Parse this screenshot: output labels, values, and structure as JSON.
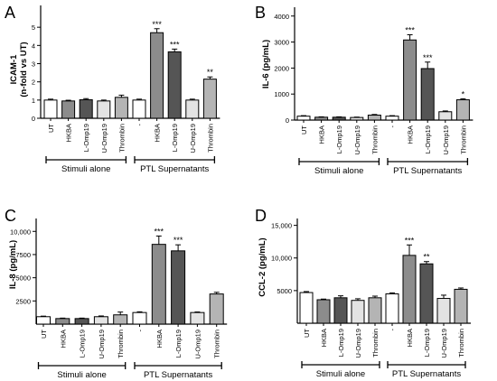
{
  "chart_data": [
    {
      "type": "bar",
      "panel_letter": "A",
      "ylabel_lines": [
        "ICAM-1",
        "(n-fold vs UT)"
      ],
      "ylim": [
        0,
        6
      ],
      "yticks": [
        0,
        1,
        2,
        3,
        4,
        5
      ],
      "ytick_labels": [
        "0",
        "1",
        "2",
        "3",
        "4",
        "5"
      ],
      "categories": [
        "UT",
        "HKBA",
        "L-Omp19",
        "U-Omp19",
        "Thrombin",
        "-",
        "HKBA",
        "L-Omp19",
        "U-Omp19",
        "Thrombin"
      ],
      "values": [
        1.0,
        0.95,
        1.02,
        0.95,
        1.15,
        1.0,
        4.7,
        3.65,
        1.0,
        2.15
      ],
      "errors": [
        0.05,
        0.04,
        0.06,
        0.05,
        0.12,
        0.05,
        0.22,
        0.15,
        0.05,
        0.12
      ],
      "significance": [
        "",
        "",
        "",
        "",
        "",
        "",
        "***",
        "***",
        "",
        "**"
      ],
      "fills": [
        "#ffffff",
        "#8c8c8c",
        "#555555",
        "#e3e3e3",
        "#b4b4b4",
        "#ffffff",
        "#8c8c8c",
        "#555555",
        "#e3e3e3",
        "#b4b4b4"
      ],
      "groups": [
        "Stimuli alone",
        "PTL Supernatants"
      ]
    },
    {
      "type": "bar",
      "panel_letter": "B",
      "ylabel_lines": [
        "IL-6 (pg/mL)"
      ],
      "ylim": [
        0,
        4200
      ],
      "yticks": [
        0,
        1000,
        2000,
        3000,
        4000
      ],
      "ytick_labels": [
        "0",
        "1000",
        "2000",
        "3000",
        "4000"
      ],
      "categories": [
        "UT",
        "HKBA",
        "L-Omp19",
        "U-Omp19",
        "Thrombin",
        "-",
        "HKBA",
        "L-Omp19",
        "U-Omp19",
        "Thrombin"
      ],
      "values": [
        150,
        110,
        110,
        100,
        190,
        150,
        3080,
        1980,
        320,
        780
      ],
      "errors": [
        20,
        15,
        15,
        15,
        25,
        20,
        200,
        250,
        30,
        40
      ],
      "significance": [
        "",
        "",
        "",
        "",
        "",
        "",
        "***",
        "***",
        "",
        "*"
      ],
      "fills": [
        "#ffffff",
        "#8c8c8c",
        "#555555",
        "#e3e3e3",
        "#b4b4b4",
        "#ffffff",
        "#8c8c8c",
        "#555555",
        "#e3e3e3",
        "#b4b4b4"
      ],
      "groups": [
        "Stimuli alone",
        "PTL Supernatants"
      ]
    },
    {
      "type": "bar",
      "panel_letter": "C",
      "ylabel_lines": [
        "IL-8 (pg/mL)"
      ],
      "ylim": [
        0,
        11000
      ],
      "yticks": [
        2500,
        5000,
        7500,
        10000
      ],
      "ytick_labels": [
        "2500",
        "5000",
        "7500",
        "10,000"
      ],
      "categories": [
        "UT",
        "HKBA",
        "L-Omp19",
        "U-Omp19",
        "Thrombin",
        "-",
        "HKBA",
        "L-Omp19",
        "U-Omp19",
        "Thrombin"
      ],
      "values": [
        800,
        600,
        600,
        800,
        1000,
        1250,
        8600,
        7900,
        1250,
        3250
      ],
      "errors": [
        60,
        50,
        50,
        80,
        300,
        80,
        900,
        650,
        60,
        180
      ],
      "significance": [
        "",
        "",
        "",
        "",
        "",
        "",
        "***",
        "***",
        "",
        ""
      ],
      "fills": [
        "#ffffff",
        "#8c8c8c",
        "#555555",
        "#e3e3e3",
        "#b4b4b4",
        "#ffffff",
        "#8c8c8c",
        "#555555",
        "#e3e3e3",
        "#b4b4b4"
      ],
      "groups": [
        "Stimuli alone",
        "PTL Supernatants"
      ]
    },
    {
      "type": "bar",
      "panel_letter": "D",
      "ylabel_lines": [
        "CCL-2 (pg/mL)"
      ],
      "ylim": [
        0,
        15500
      ],
      "yticks": [
        5000,
        10000,
        15000
      ],
      "ytick_labels": [
        "5000",
        "10,000",
        "15,000"
      ],
      "categories": [
        "UT",
        "HKBA",
        "L-Omp19",
        "U-Omp19",
        "Thrombin",
        "-",
        "HKBA",
        "L-Omp19",
        "U-Omp19",
        "Thrombin"
      ],
      "values": [
        4700,
        3600,
        3900,
        3500,
        3900,
        4500,
        10400,
        9100,
        3800,
        5200
      ],
      "errors": [
        150,
        100,
        300,
        250,
        250,
        150,
        1600,
        350,
        500,
        200
      ],
      "significance": [
        "",
        "",
        "",
        "",
        "",
        "",
        "***",
        "**",
        "",
        ""
      ],
      "fills": [
        "#ffffff",
        "#8c8c8c",
        "#555555",
        "#e3e3e3",
        "#b4b4b4",
        "#ffffff",
        "#8c8c8c",
        "#555555",
        "#e3e3e3",
        "#b4b4b4"
      ],
      "groups": [
        "Stimuli alone",
        "PTL Supernatants"
      ]
    }
  ]
}
